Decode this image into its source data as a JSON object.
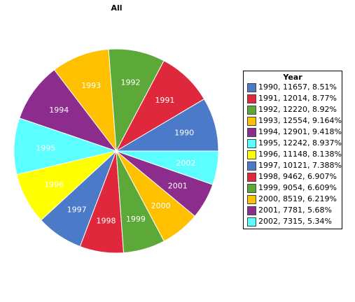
{
  "chart_data": {
    "type": "pie",
    "title": "All",
    "legend_title": "Year",
    "legend_position": "right",
    "slices": [
      {
        "label": "1990",
        "value": 11657,
        "percent": "8.51%",
        "color": "#4a7ac8"
      },
      {
        "label": "1991",
        "value": 12014,
        "percent": "8.77%",
        "color": "#e0283c"
      },
      {
        "label": "1992",
        "value": 12220,
        "percent": "8.92%",
        "color": "#5ca838"
      },
      {
        "label": "1993",
        "value": 12554,
        "percent": "9.164%",
        "color": "#ffc000"
      },
      {
        "label": "1994",
        "value": 12901,
        "percent": "9.418%",
        "color": "#8c2c8c"
      },
      {
        "label": "1995",
        "value": 12242,
        "percent": "8.937%",
        "color": "#5cffff"
      },
      {
        "label": "1996",
        "value": 11148,
        "percent": "8.138%",
        "color": "#ffff00"
      },
      {
        "label": "1997",
        "value": 10121,
        "percent": "7.388%",
        "color": "#4a7ac8"
      },
      {
        "label": "1998",
        "value": 9462,
        "percent": "6.907%",
        "color": "#e0283c"
      },
      {
        "label": "1999",
        "value": 9054,
        "percent": "6.609%",
        "color": "#5ca838"
      },
      {
        "label": "2000",
        "value": 8519,
        "percent": "6.219%",
        "color": "#ffc000"
      },
      {
        "label": "2001",
        "value": 7781,
        "percent": "5.68%",
        "color": "#8c2c8c"
      },
      {
        "label": "2002",
        "value": 7315,
        "percent": "5.34%",
        "color": "#5cffff"
      }
    ]
  }
}
